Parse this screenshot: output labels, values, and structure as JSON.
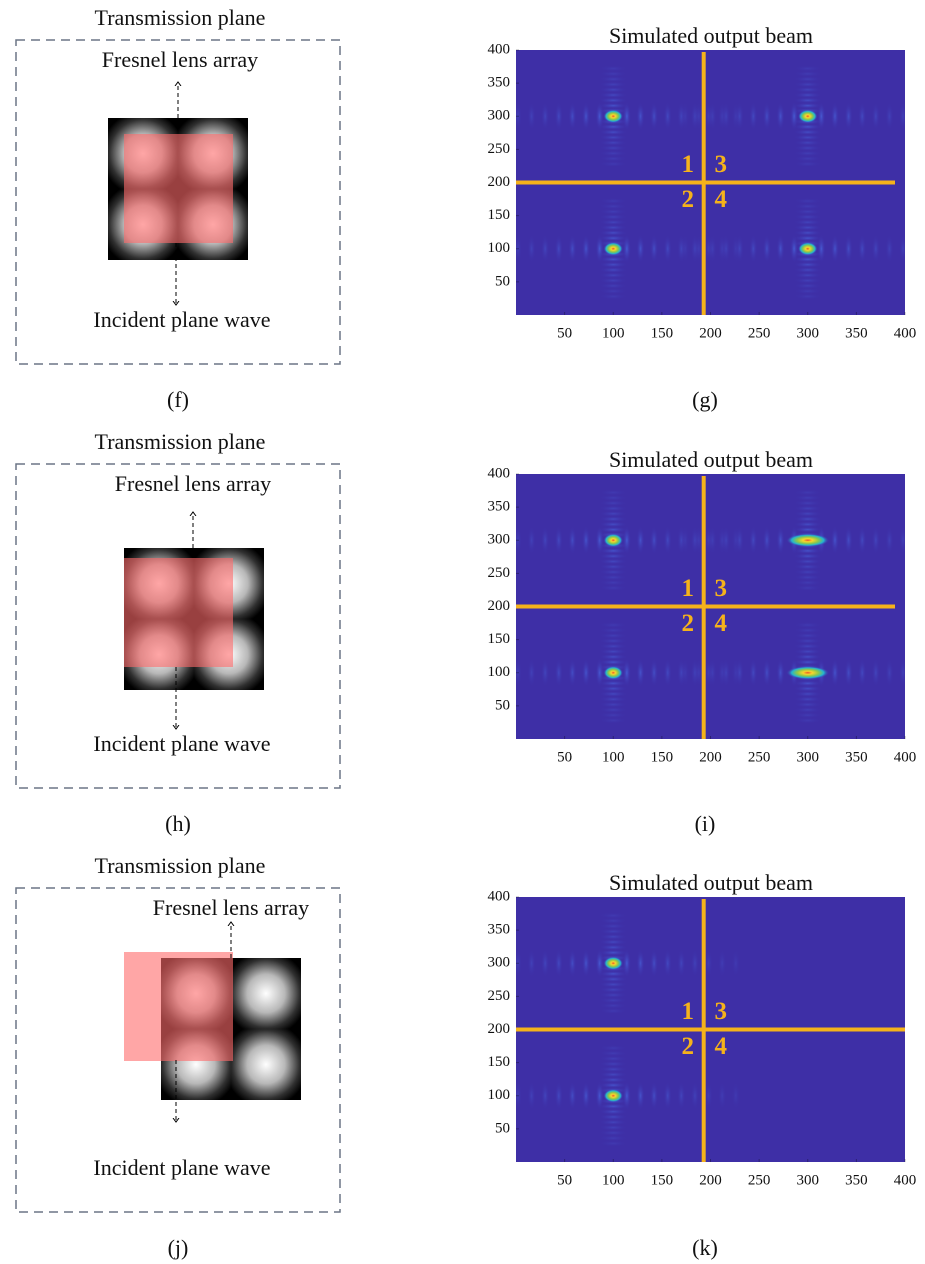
{
  "diagrams": [
    {
      "title": "Transmission plane",
      "top_label": "Fresnel lens array",
      "bottom_label": "Incident plane wave",
      "panel_label": "(f)"
    },
    {
      "title": "Transmission plane",
      "top_label": "Fresnel lens array",
      "bottom_label": "Incident plane wave",
      "panel_label": "(h)"
    },
    {
      "title": "Transmission plane",
      "top_label": "Fresnel lens array",
      "bottom_label": "Incident plane wave",
      "panel_label": "(j)"
    }
  ],
  "chart_data": [
    {
      "type": "heatmap",
      "title": "Simulated output beam",
      "panel_label": "(g)",
      "xlim": [
        0,
        400
      ],
      "ylim": [
        0,
        400
      ],
      "xticks": [
        50,
        100,
        150,
        200,
        250,
        300,
        350,
        400
      ],
      "yticks": [
        50,
        100,
        150,
        200,
        250,
        300,
        350,
        400
      ],
      "spots": [
        {
          "x": 100,
          "y": 300,
          "rx": 10
        },
        {
          "x": 300,
          "y": 300,
          "rx": 10
        },
        {
          "x": 100,
          "y": 100,
          "rx": 10
        },
        {
          "x": 300,
          "y": 100,
          "rx": 10
        }
      ],
      "crosshair": {
        "x": 193,
        "y": 200,
        "color": "#f5b21b"
      },
      "quadrant_labels": [
        "1",
        "2",
        "3",
        "4"
      ]
    },
    {
      "type": "heatmap",
      "title": "Simulated output beam",
      "panel_label": "(i)",
      "xlim": [
        0,
        400
      ],
      "ylim": [
        0,
        400
      ],
      "xticks": [
        50,
        100,
        150,
        200,
        250,
        300,
        350,
        400
      ],
      "yticks": [
        50,
        100,
        150,
        200,
        250,
        300,
        350,
        400
      ],
      "spots": [
        {
          "x": 100,
          "y": 300,
          "rx": 10
        },
        {
          "x": 300,
          "y": 300,
          "rx": 22
        },
        {
          "x": 100,
          "y": 100,
          "rx": 10
        },
        {
          "x": 300,
          "y": 100,
          "rx": 22
        }
      ],
      "crosshair": {
        "x": 193,
        "y": 200,
        "color": "#f5b21b"
      },
      "quadrant_labels": [
        "1",
        "2",
        "3",
        "4"
      ]
    },
    {
      "type": "heatmap",
      "title": "Simulated output beam",
      "panel_label": "(k)",
      "xlim": [
        0,
        400
      ],
      "ylim": [
        0,
        400
      ],
      "xticks": [
        50,
        100,
        150,
        200,
        250,
        300,
        350,
        400
      ],
      "yticks": [
        50,
        100,
        150,
        200,
        250,
        300,
        350,
        400
      ],
      "spots": [
        {
          "x": 100,
          "y": 300,
          "rx": 10
        },
        {
          "x": 100,
          "y": 100,
          "rx": 10
        }
      ],
      "crosshair": {
        "x": 193,
        "y": 200,
        "color": "#f5b21b"
      },
      "quadrant_labels": [
        "1",
        "2",
        "3",
        "4"
      ]
    }
  ]
}
